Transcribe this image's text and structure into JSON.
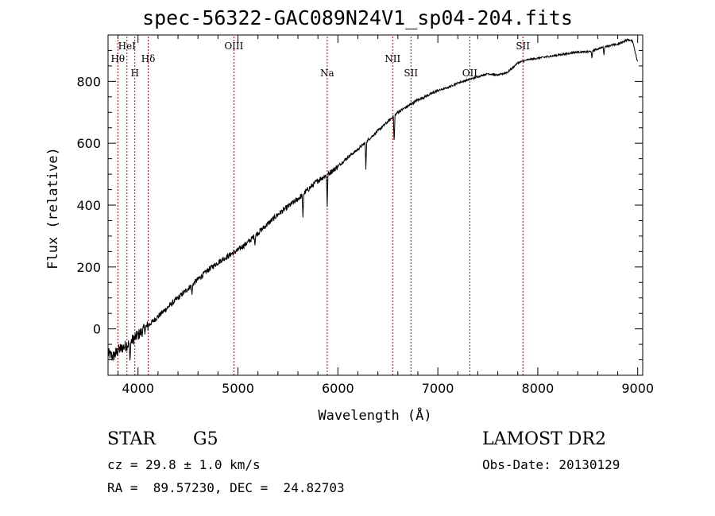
{
  "chart_data": {
    "type": "line",
    "title": "spec-56322-GAC089N24V1_sp04-204.fits",
    "xlabel": "Wavelength (Å)",
    "ylabel": "Flux (relative)",
    "xlim": [
      3700,
      9050
    ],
    "ylim": [
      -150,
      950
    ],
    "x_ticks": [
      "4000",
      "5000",
      "6000",
      "7000",
      "8000",
      "9000"
    ],
    "y_ticks": [
      "0",
      "200",
      "400",
      "600",
      "800"
    ],
    "line_markers": [
      {
        "label": "Hθ",
        "wavelength": 3798,
        "row": 2
      },
      {
        "label": "HeI",
        "wavelength": 3889,
        "row": 1
      },
      {
        "label": "H",
        "wavelength": 3968,
        "row": 3
      },
      {
        "label": "Hδ",
        "wavelength": 4102,
        "row": 2
      },
      {
        "label": "OIII",
        "wavelength": 4959,
        "row": 1
      },
      {
        "label": "Na",
        "wavelength": 5893,
        "row": 3
      },
      {
        "label": "NII",
        "wavelength": 6548,
        "row": 2
      },
      {
        "label": "SII",
        "wavelength": 6731,
        "row": 3
      },
      {
        "label": "OII",
        "wavelength": 7320,
        "row": 3
      },
      {
        "label": "SII",
        "wavelength": 7851,
        "row": 1
      }
    ],
    "series": [
      {
        "x": [
          3700,
          3750,
          3800,
          3850,
          3900,
          3950,
          4000,
          4100,
          4200,
          4300,
          4400,
          4500,
          4600,
          4700,
          4800,
          4900,
          5000,
          5100,
          5200,
          5300,
          5400,
          5500,
          5600,
          5700,
          5800,
          5900,
          6000,
          6100,
          6200,
          6300,
          6400,
          6500,
          6600,
          6700,
          6800,
          6900,
          7000,
          7100,
          7200,
          7300,
          7400,
          7500,
          7600,
          7700,
          7800,
          7900,
          8000,
          8100,
          8200,
          8300,
          8400,
          8500,
          8600,
          8700,
          8800,
          8900,
          8950,
          9000
        ],
        "y": [
          -80,
          -90,
          -70,
          -60,
          -50,
          -35,
          -20,
          10,
          40,
          70,
          100,
          130,
          160,
          190,
          215,
          235,
          255,
          280,
          310,
          340,
          370,
          395,
          420,
          450,
          480,
          500,
          525,
          555,
          580,
          610,
          640,
          670,
          700,
          720,
          740,
          755,
          770,
          780,
          795,
          805,
          815,
          825,
          820,
          830,
          860,
          870,
          875,
          880,
          885,
          890,
          895,
          895,
          905,
          915,
          920,
          935,
          930,
          860
        ],
        "absorption": [
          {
            "x": 3920,
            "y": -110
          },
          {
            "x": 4540,
            "y": 110
          },
          {
            "x": 5170,
            "y": 270
          },
          {
            "x": 5650,
            "y": 360
          },
          {
            "x": 5893,
            "y": 395
          },
          {
            "x": 6280,
            "y": 515
          },
          {
            "x": 6563,
            "y": 600
          },
          {
            "x": 8542,
            "y": 875
          },
          {
            "x": 8662,
            "y": 885
          }
        ]
      }
    ]
  },
  "info": {
    "object": "STAR",
    "subclass": "G5",
    "survey": "LAMOST DR2",
    "cz": "cz = 29.8 ± 1.0 km/s",
    "obs_date": "Obs-Date: 20130129",
    "coords": "RA =  89.57230, DEC =  24.82703"
  }
}
